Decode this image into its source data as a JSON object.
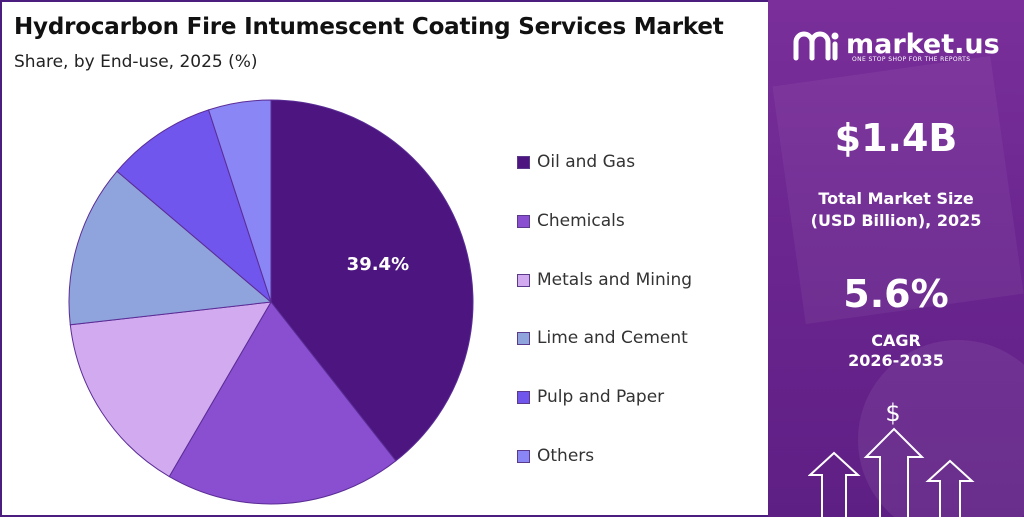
{
  "title": "Hydrocarbon Fire Intumescent Coating Services Market",
  "subtitle": "Share, by End-use, 2025 (%)",
  "chart_data": {
    "type": "pie",
    "title": "Hydrocarbon Fire Intumescent Coating Services Market",
    "subtitle": "Share, by End-use, 2025 (%)",
    "categories": [
      "Oil and Gas",
      "Chemicals",
      "Metals and Mining",
      "Lime and Cement",
      "Pulp and Paper",
      "Others"
    ],
    "values": [
      39.4,
      19.0,
      14.8,
      13.0,
      8.8,
      5.0
    ],
    "colors": [
      "#4c1580",
      "#8a4fd0",
      "#d2aaf0",
      "#8fa4dc",
      "#7156ee",
      "#8a86f5"
    ],
    "data_labels": [
      "39.4%",
      "",
      "",
      "",
      "",
      ""
    ],
    "legend_position": "right"
  },
  "legend": [
    "Oil and Gas",
    "Chemicals",
    "Metals and Mining",
    "Lime and Cement",
    "Pulp and Paper",
    "Others"
  ],
  "sidebar": {
    "brand_name": "market.us",
    "brand_tagline": "ONE STOP SHOP FOR THE REPORTS",
    "market_size_value": "$1.4B",
    "market_size_label_line1": "Total Market Size",
    "market_size_label_line2": "(USD Billion), 2025",
    "cagr_value": "5.6%",
    "cagr_label_line1": "CAGR",
    "cagr_label_line2": "2026-2035",
    "dollar_symbol": "$",
    "logo_icon": "market-us-logo-icon",
    "arrows_icon": "growth-arrows-icon"
  }
}
